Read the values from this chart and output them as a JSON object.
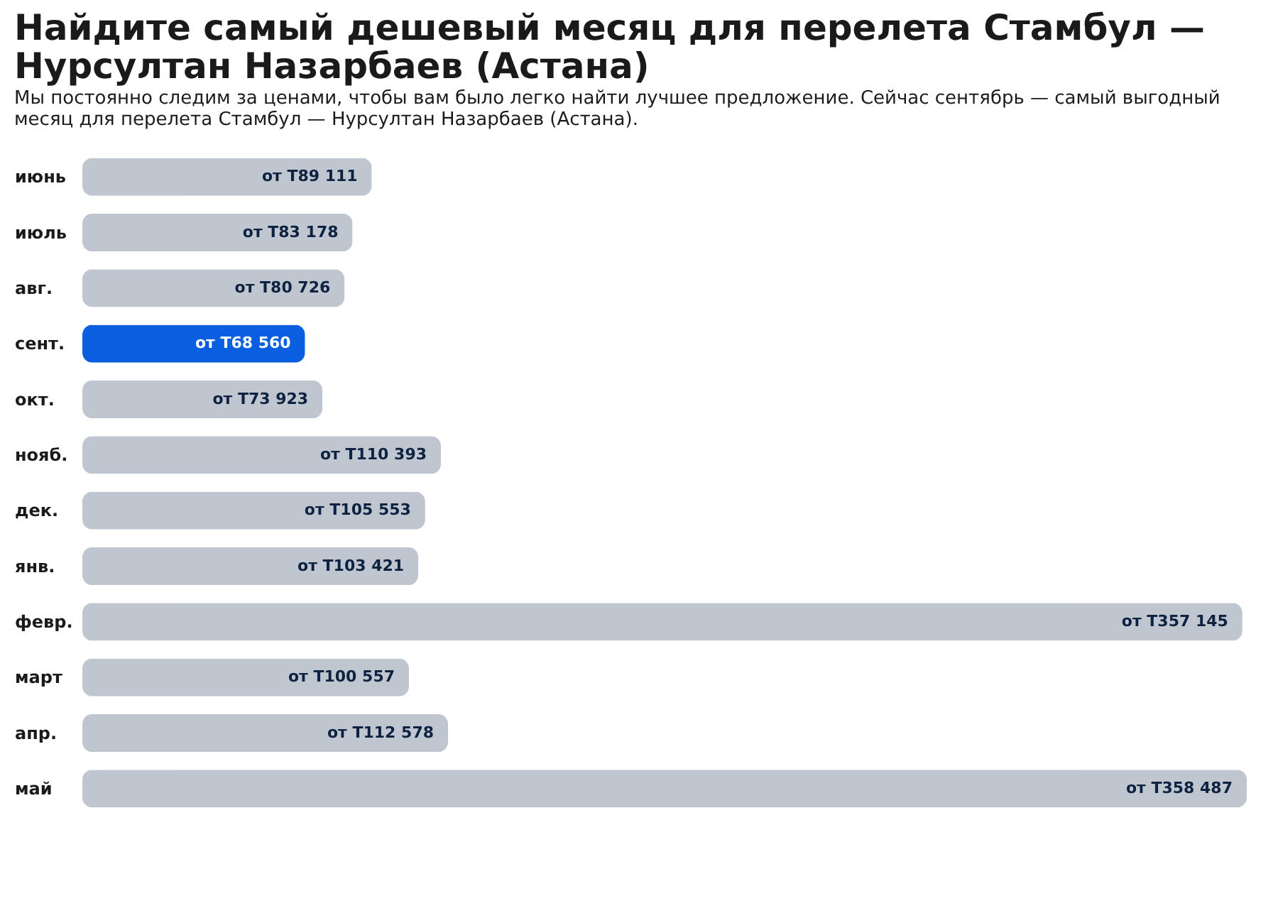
{
  "chart_data": {
    "type": "bar",
    "orientation": "horizontal",
    "title": "Найдите самый дешевый месяц для перелета Стамбул — Нурсултан Назарбаев (Астана)",
    "subtitle": "Мы постоянно следим за ценами, чтобы вам было легко найти лучшее предложение. Сейчас сентябрь — самый выгодный месяц для перелета Стамбул — Нурсултан Назарбаев (Астана).",
    "categories": [
      "июнь",
      "июль",
      "авг.",
      "сент.",
      "окт.",
      "нояб.",
      "дек.",
      "янв.",
      "февр.",
      "март",
      "апр.",
      "май"
    ],
    "values": [
      89111,
      83178,
      80726,
      68560,
      73923,
      110393,
      105553,
      103421,
      357145,
      100557,
      112578,
      358487
    ],
    "value_labels": [
      "от T89 111",
      "от T83 178",
      "от T80 726",
      "от T68 560",
      "от T73 923",
      "от T110 393",
      "от T105 553",
      "от T103 421",
      "от T357 145",
      "от T100 557",
      "от T112 578",
      "от T358 487"
    ],
    "colors": [
      "#c0c6cf",
      "#c0c6cf",
      "#c0c6cf",
      "#0a5fe0",
      "#c0c6cf",
      "#c0c6cf",
      "#c0c6cf",
      "#c0c6cf",
      "#c0c6cf",
      "#c0c6cf",
      "#c0c6cf",
      "#c0c6cf"
    ]
  }
}
